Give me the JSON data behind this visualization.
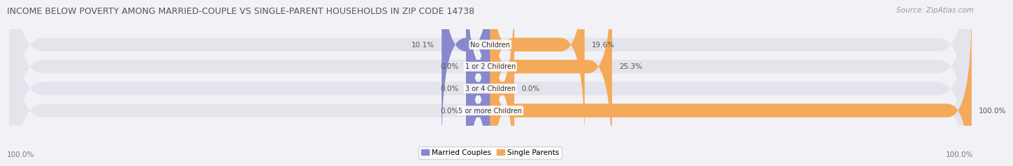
{
  "title": "INCOME BELOW POVERTY AMONG MARRIED-COUPLE VS SINGLE-PARENT HOUSEHOLDS IN ZIP CODE 14738",
  "source": "Source: ZipAtlas.com",
  "categories": [
    "No Children",
    "1 or 2 Children",
    "3 or 4 Children",
    "5 or more Children"
  ],
  "married_values": [
    10.1,
    0.0,
    0.0,
    0.0
  ],
  "single_values": [
    19.6,
    25.3,
    0.0,
    100.0
  ],
  "married_color": "#8888cc",
  "single_color": "#f4aa5a",
  "bar_bg_color": "#e4e4ec",
  "bar_height": 0.62,
  "max_value": 100.0,
  "legend_labels": [
    "Married Couples",
    "Single Parents"
  ],
  "title_fontsize": 9.0,
  "source_fontsize": 7.5,
  "label_fontsize": 7.5,
  "category_fontsize": 7.0,
  "axis_label_left": "100.0%",
  "axis_label_right": "100.0%",
  "background_color": "#f2f2f6"
}
